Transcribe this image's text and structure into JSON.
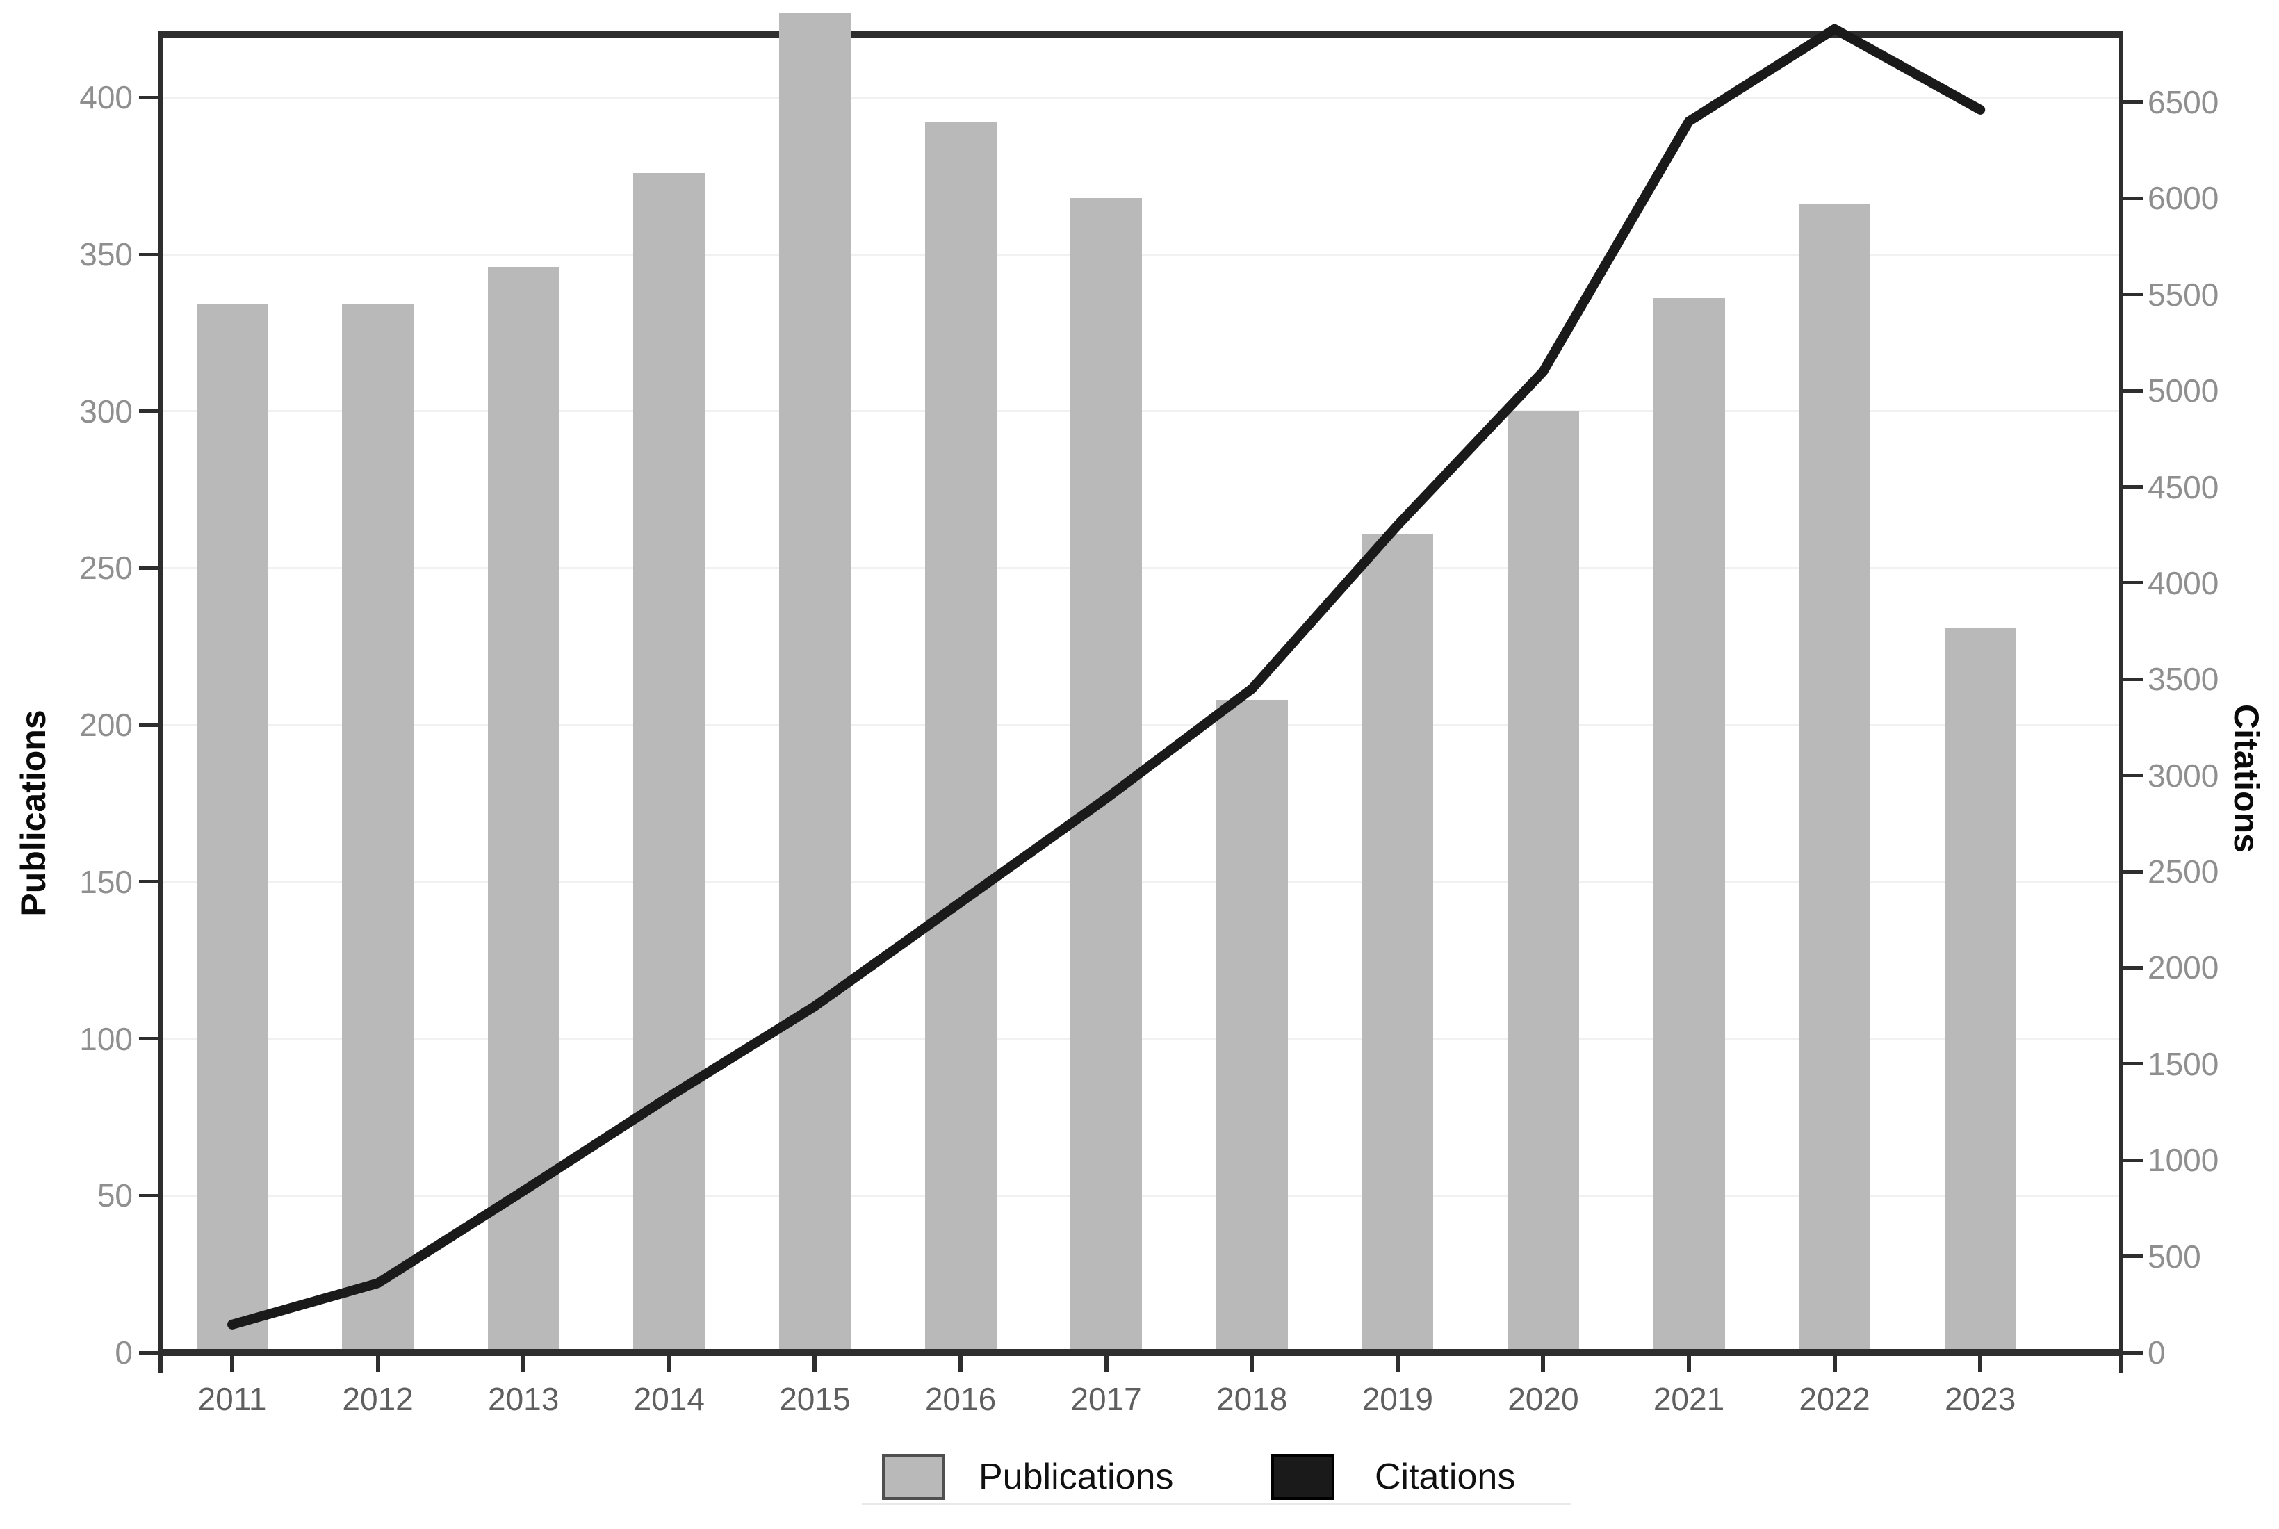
{
  "chart_data": {
    "type": "combo-bar-line-dual-axis",
    "categories": [
      "2011",
      "2012",
      "2013",
      "2014",
      "2015",
      "2016",
      "2017",
      "2018",
      "2019",
      "2020",
      "2021",
      "2022",
      "2023"
    ],
    "series": [
      {
        "name": "Publications",
        "type": "bar",
        "axis": "left",
        "values": [
          334,
          334,
          346,
          376,
          427,
          392,
          368,
          208,
          261,
          300,
          336,
          366,
          231
        ]
      },
      {
        "name": "Citations",
        "type": "line",
        "axis": "right",
        "values": [
          145,
          360,
          840,
          1330,
          1800,
          2340,
          2880,
          3450,
          4300,
          5100,
          6400,
          6880,
          6460
        ]
      }
    ],
    "left_axis": {
      "label": "Publications",
      "ticks": [
        0,
        50,
        100,
        150,
        200,
        250,
        300,
        350,
        400
      ],
      "range": [
        0,
        420
      ]
    },
    "right_axis": {
      "label": "Citations",
      "ticks": [
        0,
        500,
        1000,
        1500,
        2000,
        2500,
        3000,
        3500,
        4000,
        4500,
        5000,
        5500,
        6000,
        6500
      ],
      "range": [
        0,
        6850
      ]
    },
    "x_axis": {
      "tick_labels": [
        "2011",
        "2012",
        "2013",
        "2014",
        "2015",
        "2016",
        "2017",
        "2018",
        "2019",
        "2020",
        "2021",
        "2022",
        "2023"
      ]
    },
    "legend": {
      "position": "bottom",
      "entries": [
        {
          "label": "Publications",
          "swatch": "gray-square"
        },
        {
          "label": "Citations",
          "swatch": "black-square"
        }
      ]
    },
    "grid": "very faint horizontal gridlines at each left-axis tick",
    "notes": "2015 bar and 2022 line peak extend slightly above the plot frame (clipped in source image)"
  },
  "colors": {
    "background": "#ffffff",
    "bar": "#b9b9b9",
    "line": "#1a1a1a",
    "axis": "#2e2e2e",
    "grid": "#f1f1f1",
    "y_tick_label": "#8f8f8f",
    "x_tick_label": "#5f5f5f",
    "axis_title": "#0a0a0a",
    "legend_text": "#101010",
    "legend_gray_border": "#4f4f4f",
    "legend_rule": "#e9e9e9"
  }
}
